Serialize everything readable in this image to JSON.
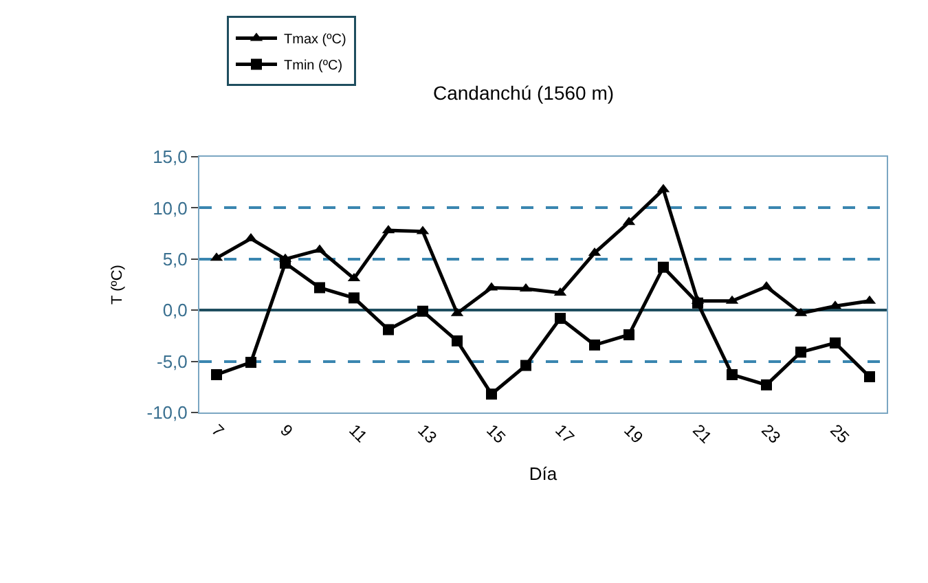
{
  "chart_data": {
    "type": "line",
    "title": "Candanchú (1560 m)",
    "xlabel": "Día",
    "ylabel": "T (ºC)",
    "categories": [
      "7",
      null,
      "9",
      null,
      "11",
      null,
      "13",
      null,
      "15",
      null,
      "17",
      null,
      "19",
      null,
      "21",
      null,
      "23",
      null,
      "25",
      null
    ],
    "series": [
      {
        "name": "Tmax (ºC)",
        "color": "#000000",
        "marker": "triangle",
        "values": [
          5.1,
          7.0,
          5.0,
          5.9,
          3.1,
          7.8,
          7.7,
          -0.3,
          2.2,
          2.1,
          1.7,
          5.6,
          8.6,
          11.8,
          0.9,
          0.9,
          2.3,
          -0.3,
          0.4,
          0.9
        ]
      },
      {
        "name": "Tmin (ºC)",
        "color": "#000000",
        "marker": "square",
        "values": [
          -6.3,
          -5.1,
          4.6,
          2.2,
          1.2,
          -1.9,
          -0.1,
          -3.0,
          -8.2,
          -5.4,
          -0.8,
          -3.4,
          -2.4,
          4.2,
          0.7,
          -6.3,
          -7.3,
          -4.1,
          -3.2,
          -6.5
        ]
      }
    ],
    "ylim": [
      -10,
      15
    ],
    "yticks": [
      {
        "value": -10,
        "label": "-10,0"
      },
      {
        "value": -5,
        "label": "-5,0"
      },
      {
        "value": 0,
        "label": "0,0"
      },
      {
        "value": 5,
        "label": "5,0"
      },
      {
        "value": 10,
        "label": "10,0"
      },
      {
        "value": 15,
        "label": "15,0"
      }
    ],
    "grid": "y",
    "legend": "top left",
    "line_style": "solid"
  }
}
